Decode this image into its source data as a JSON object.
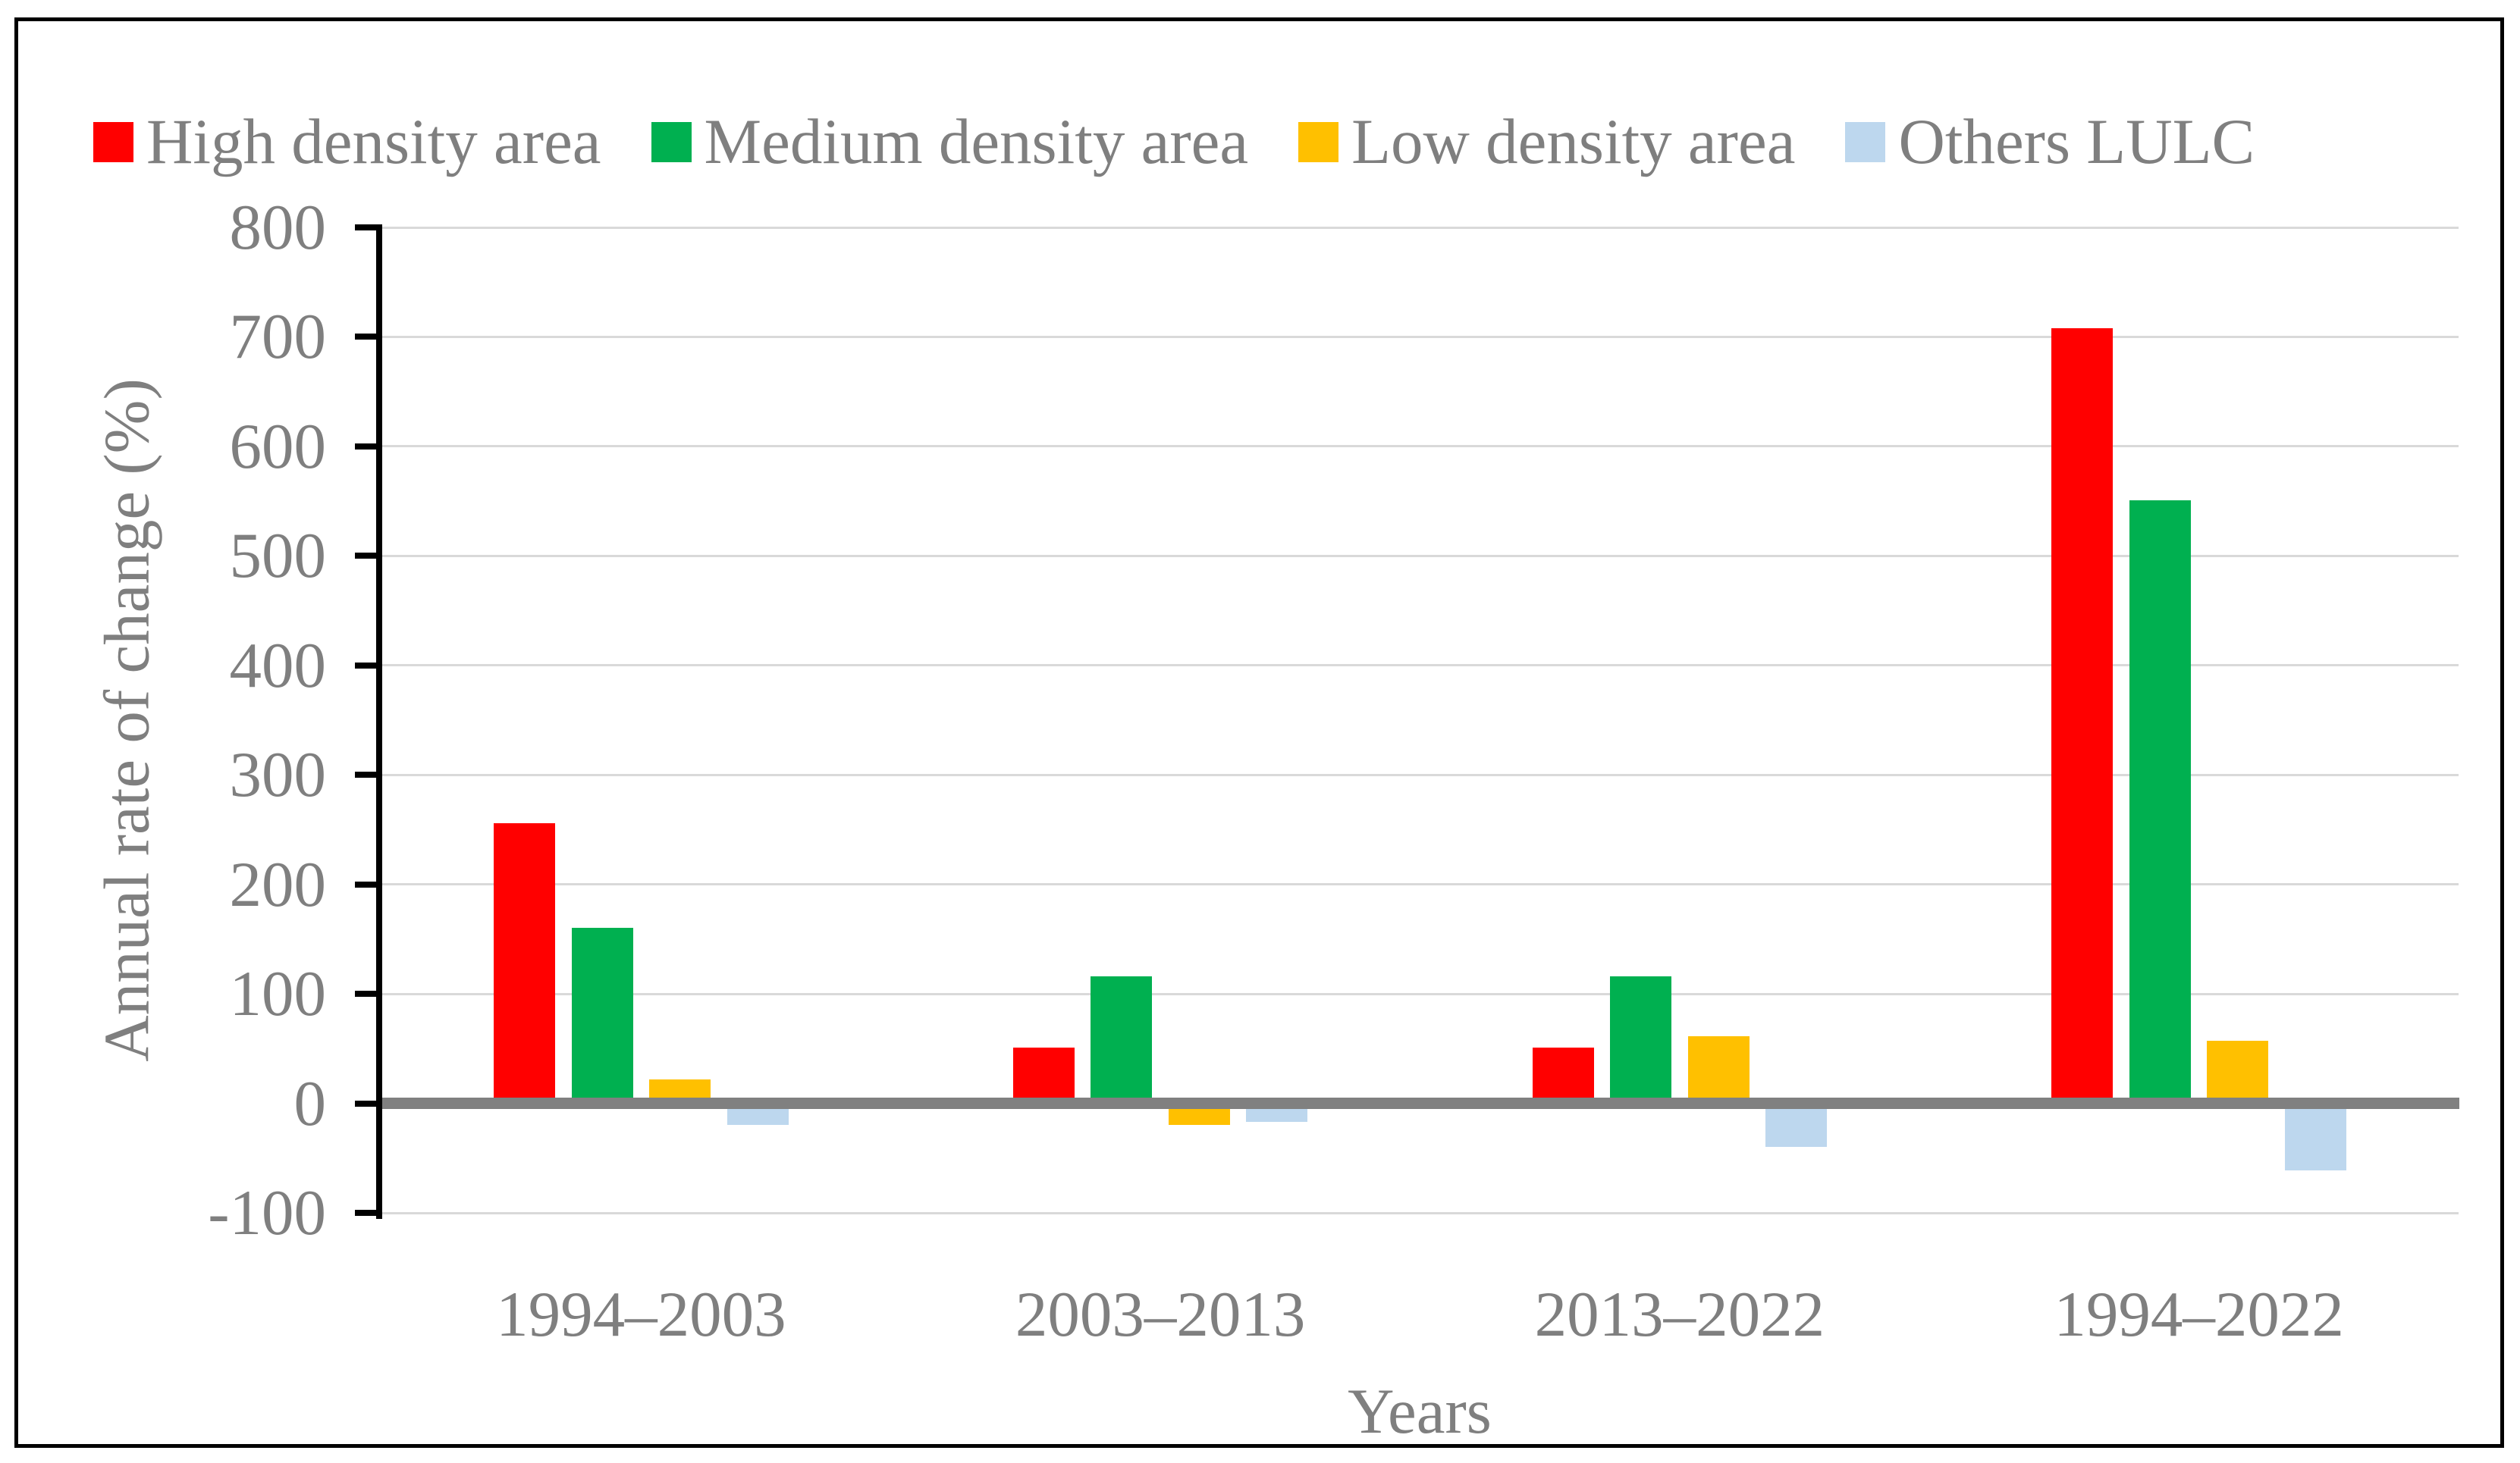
{
  "chart_data": {
    "type": "bar",
    "title": "",
    "categories": [
      "1994–2003",
      "2003–2013",
      "2013–2022",
      "1994–2022"
    ],
    "series": [
      {
        "name": "High density area",
        "color": "#FF0000",
        "values": [
          256,
          51,
          51,
          708
        ]
      },
      {
        "name": "Medium density area",
        "color": "#00B050",
        "values": [
          160,
          116,
          116,
          551
        ]
      },
      {
        "name": "Low density area",
        "color": "#FFC000",
        "values": [
          22,
          -20,
          61,
          57
        ]
      },
      {
        "name": "Others LULC",
        "color": "#BDD7EE",
        "values": [
          -20,
          -17,
          -40,
          -61
        ]
      }
    ],
    "xlabel": "Years",
    "ylabel": "Annual rate of change (%)",
    "ylim": [
      -100,
      800
    ],
    "yticks": [
      800,
      700,
      600,
      500,
      400,
      300,
      200,
      100,
      0,
      -100
    ],
    "grid": "horizontal",
    "legend_position": "top"
  },
  "colors": {
    "gridline": "#D9D9D9",
    "zero_line": "#808080",
    "axis": "#000000",
    "text": "#7F7F7F",
    "border": "#000000",
    "background": "#FFFFFF"
  }
}
